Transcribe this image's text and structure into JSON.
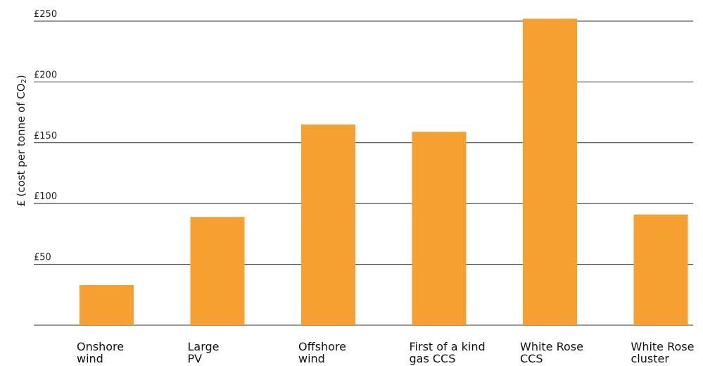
{
  "chart_data": {
    "type": "bar",
    "title": "",
    "xlabel": "",
    "ylabel": "£ (cost per tonne of CO",
    "ylabel_subscript": "2",
    "ylabel_suffix": ")",
    "ylim": [
      0,
      250
    ],
    "yticks": [
      50,
      100,
      150,
      200,
      250
    ],
    "ytick_labels": [
      "£50",
      "£100",
      "£150",
      "£200",
      "£250"
    ],
    "grid": true,
    "categories": [
      [
        "Onshore",
        "wind"
      ],
      [
        "Large",
        "PV"
      ],
      [
        "Offshore",
        "wind"
      ],
      [
        "First of a kind",
        "gas CCS"
      ],
      [
        "White Rose",
        "CCS"
      ],
      [
        "White Rose",
        "cluster"
      ]
    ],
    "values": [
      33,
      89,
      165,
      159,
      252,
      91
    ],
    "bar_color": "#F7A032",
    "grid_color": "#333333"
  }
}
